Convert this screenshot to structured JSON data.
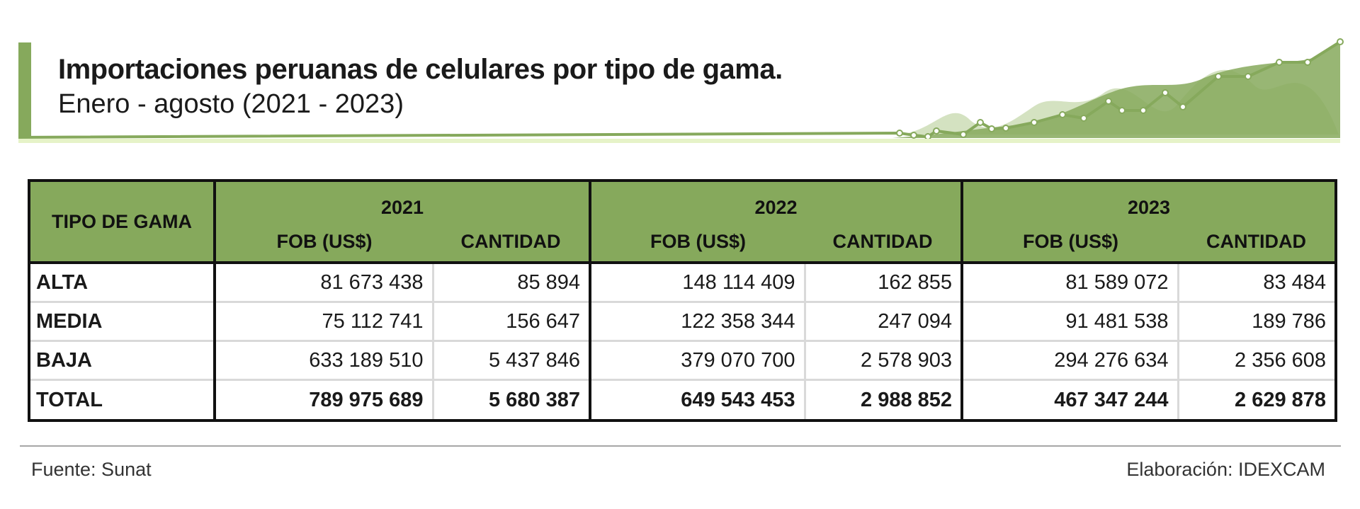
{
  "header": {
    "title": "Importaciones peruanas de celulares por tipo de gama.",
    "subtitle": "Enero - agosto (2021 - 2023)"
  },
  "colors": {
    "accent": "#86a95c",
    "border": "#111111",
    "grid": "#d9d9d9"
  },
  "table": {
    "gama_header": "TIPO DE GAMA",
    "years": [
      "2021",
      "2022",
      "2023"
    ],
    "sub_headers": [
      "FOB (US$)",
      "CANTIDAD"
    ],
    "rows": [
      {
        "label": "ALTA",
        "values": [
          "81 673 438",
          "85 894",
          "148 114 409",
          "162 855",
          "81 589 072",
          "83 484"
        ]
      },
      {
        "label": "MEDIA",
        "values": [
          "75 112 741",
          "156 647",
          "122 358 344",
          "247 094",
          "91 481 538",
          "189 786"
        ]
      },
      {
        "label": "BAJA",
        "values": [
          "633 189 510",
          "5 437 846",
          "379 070 700",
          "2 578 903",
          "294 276 634",
          "2 356 608"
        ]
      },
      {
        "label": "TOTAL",
        "values": [
          "789 975 689",
          "5 680 387",
          "649 543 453",
          "2 988 852",
          "467 347 244",
          "2 629 878"
        ]
      }
    ]
  },
  "footer": {
    "source": "Fuente: Sunat",
    "credit": "Elaboración: IDEXCAM"
  }
}
